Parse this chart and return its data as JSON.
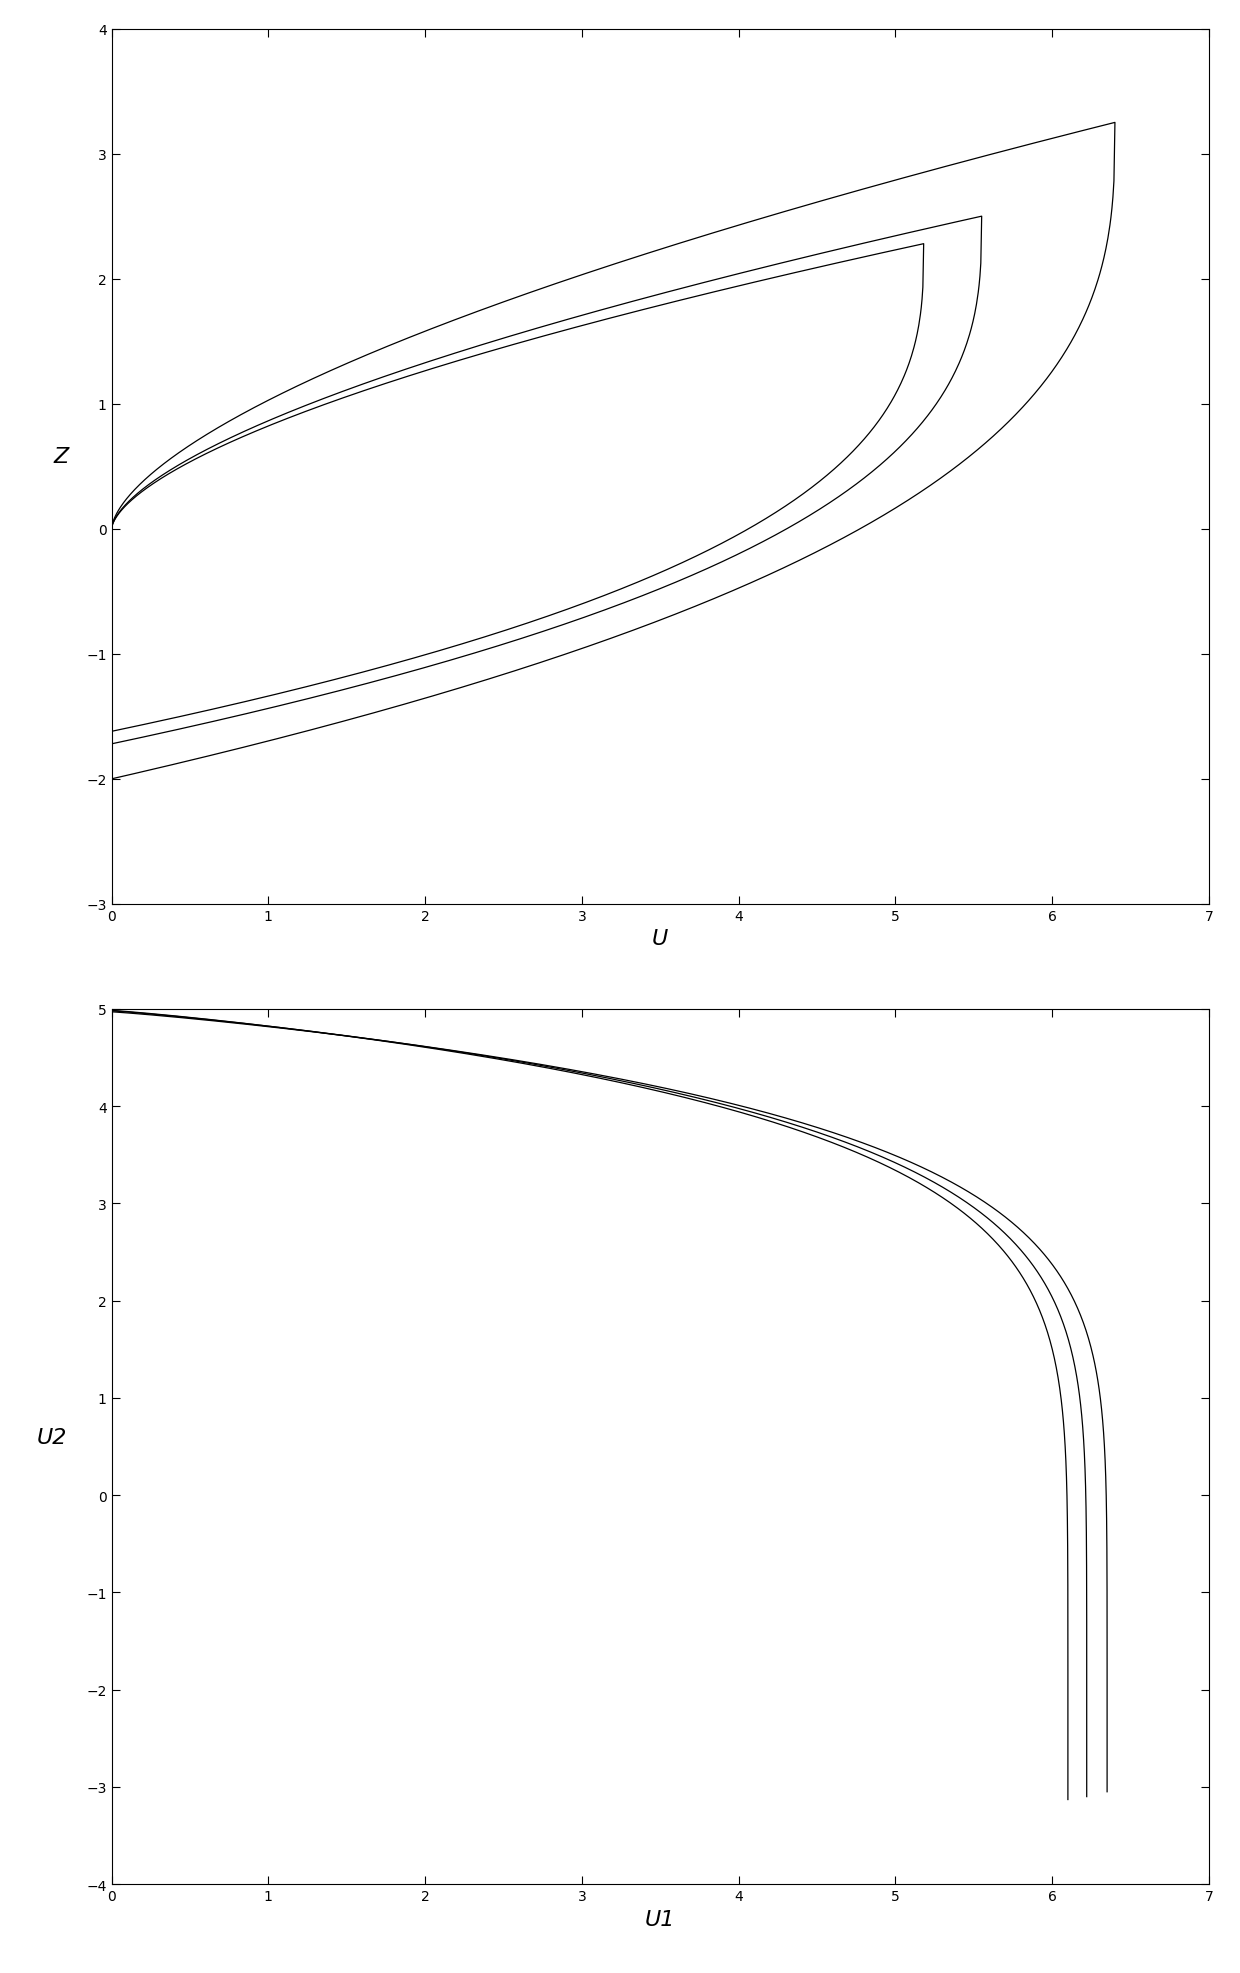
{
  "chart1": {
    "xlabel": "U",
    "ylabel": "Z",
    "xlim": [
      0,
      7
    ],
    "ylim": [
      -3,
      4
    ],
    "xticks": [
      0,
      1,
      2,
      3,
      4,
      5,
      6,
      7
    ],
    "yticks": [
      -3,
      -2,
      -1,
      0,
      1,
      2,
      3,
      4
    ],
    "bgcolor": "#ffffff",
    "linecolor": "#000000",
    "linewidth": 0.9,
    "curves": [
      {
        "umax": 6.4,
        "zmax": 3.25,
        "zneg": -2.0
      },
      {
        "umax": 5.55,
        "zmax": 2.5,
        "zneg": -1.72
      },
      {
        "umax": 5.18,
        "zmax": 2.28,
        "zneg": -1.62
      }
    ]
  },
  "chart2": {
    "xlabel": "U1",
    "ylabel": "U2",
    "xlim": [
      0,
      7
    ],
    "ylim": [
      -4,
      5
    ],
    "xticks": [
      0,
      1,
      2,
      3,
      4,
      5,
      6,
      7
    ],
    "yticks": [
      -4,
      -3,
      -2,
      -1,
      0,
      1,
      2,
      3,
      4,
      5
    ],
    "bgcolor": "#ffffff",
    "linecolor": "#000000",
    "linewidth": 0.9,
    "curves": [
      {
        "xend": 6.35,
        "ytop": 4.97,
        "ybot": -3.05
      },
      {
        "xend": 6.22,
        "ytop": 4.98,
        "ybot": -3.1
      },
      {
        "xend": 6.1,
        "ytop": 4.985,
        "ybot": -3.13
      }
    ]
  }
}
